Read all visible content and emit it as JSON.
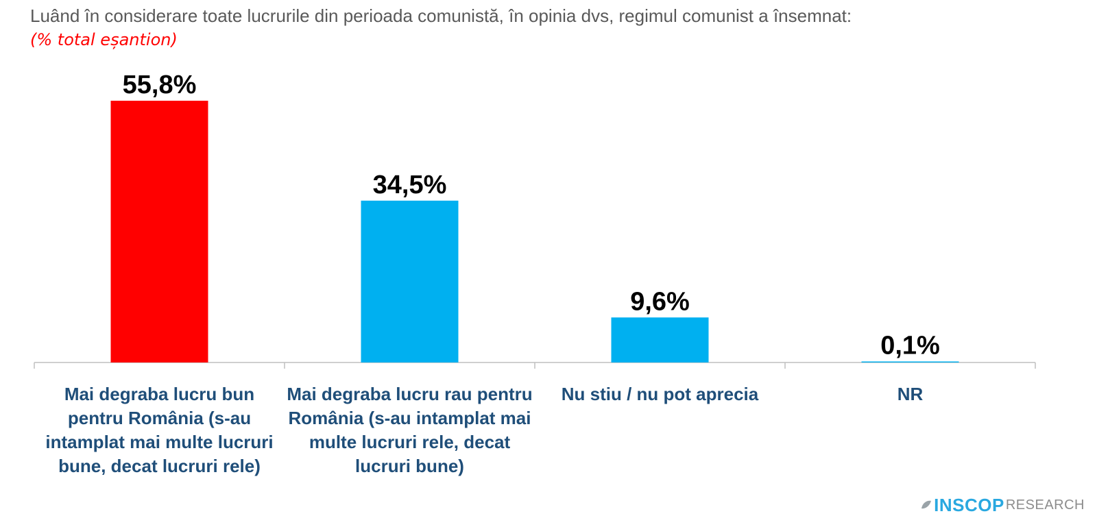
{
  "title": "Luând în considerare toate lucrurile din perioada comunistă, în opinia dvs, regimul comunist a însemnat:",
  "subtitle": "(% total eșantion)",
  "logo": {
    "brand": "INSCOP",
    "suffix": "RESEARCH"
  },
  "chart_data": {
    "type": "bar",
    "title": "Luând în considerare toate lucrurile din perioada comunistă, în opinia dvs, regimul comunist a însemnat:",
    "subtitle": "(% total eșantion)",
    "categories": [
      "Mai degraba lucru bun pentru România (s-au intamplat mai multe lucruri bune, decat lucruri rele)",
      "Mai degraba lucru rau pentru România (s-au intamplat mai multe lucruri rele, decat lucruri bune)",
      "Nu stiu / nu pot aprecia",
      "NR"
    ],
    "values": [
      55.8,
      34.5,
      9.6,
      0.1
    ],
    "value_labels": [
      "55,8%",
      "34,5%",
      "9,6%",
      "0,1%"
    ],
    "colors": [
      "#ff0000",
      "#00b0f0",
      "#00b0f0",
      "#00b0f0"
    ],
    "ylim": [
      0,
      55.8
    ],
    "grid": false,
    "legend": "none",
    "xlabel": "",
    "ylabel": ""
  }
}
